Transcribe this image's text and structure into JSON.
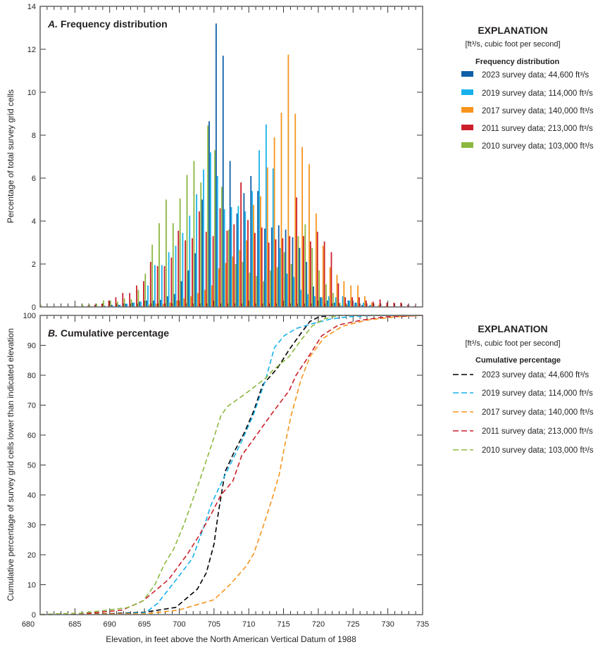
{
  "chart_data": [
    {
      "type": "bar",
      "title": "A. Frequency distribution",
      "title_letter": "A.",
      "title_text": "Frequency distribution",
      "xlabel": "",
      "ylabel": "Percentage of total survey grid cells",
      "xlim": [
        680,
        735
      ],
      "ylim": [
        0,
        14
      ],
      "yticks": [
        0,
        2,
        4,
        6,
        8,
        10,
        12,
        14
      ],
      "grid": false,
      "legend_position": "right",
      "legend": {
        "heading": "EXPLANATION",
        "units_note": "[ft³/s, cubic foot per second]",
        "group_title": "Frequency distribution"
      },
      "bin_start": 680,
      "bin_width": 1,
      "bar_order": [
        "2010",
        "2023",
        "2019",
        "2017",
        "2011"
      ],
      "series": [
        {
          "key": "2023",
          "name": "2023 survey data; 44,600 ft³/s",
          "color": "#0f5fa8",
          "values": [
            0,
            0,
            0,
            0,
            0,
            0,
            0,
            0,
            0,
            0.05,
            0.1,
            0.1,
            0.15,
            0.2,
            0.25,
            0.3,
            0.3,
            0.33,
            0.5,
            0.6,
            1.2,
            1.7,
            2.5,
            5.0,
            8.65,
            13.2,
            11.7,
            6.8,
            4.35,
            5.3,
            6.1,
            5.4,
            3.65,
            3.7,
            3.8,
            3.6,
            3.25,
            2.75,
            2.1,
            0.95,
            0.45,
            0.3,
            0.2,
            0.05,
            0.3,
            0.2,
            0.1,
            0.05,
            0,
            0,
            0,
            0,
            0,
            0
          ]
        },
        {
          "key": "2019",
          "name": "2019 survey data; 114,000 ft³/s",
          "color": "#17b1ec",
          "values": [
            0,
            0,
            0,
            0,
            0,
            0,
            0,
            0,
            0,
            0,
            0.05,
            0.1,
            0.15,
            0.2,
            0.25,
            1.0,
            1.95,
            1.95,
            2.55,
            2.85,
            3.45,
            4.25,
            5.25,
            6.4,
            7.2,
            6.1,
            4.55,
            4.65,
            4.7,
            4.45,
            5.4,
            7.3,
            8.5,
            6.45,
            2.75,
            1.55,
            1.4,
            0.8,
            0.6,
            0.5,
            0.45,
            0.5,
            0.45,
            0.5,
            0.3,
            0.2,
            0.2,
            0.1,
            0,
            0,
            0,
            0,
            0,
            0
          ]
        },
        {
          "key": "2017",
          "name": "2017 survey data; 140,000 ft³/s",
          "color": "#f7941d",
          "values": [
            0,
            0,
            0,
            0,
            0,
            0,
            0,
            0,
            0,
            0,
            0,
            0,
            0,
            0,
            0.05,
            0.1,
            0.15,
            0.15,
            0.2,
            0.3,
            0.4,
            0.5,
            0.65,
            0.8,
            1.0,
            1.8,
            2.05,
            2.35,
            2.65,
            3.1,
            4.75,
            5.15,
            6.5,
            7.9,
            9.05,
            11.75,
            9.0,
            7.45,
            6.65,
            4.35,
            2.85,
            1.85,
            1.5,
            1.2,
            1.0,
            1.0,
            0.5,
            0.2,
            0.1,
            0.05,
            0,
            0,
            0,
            0
          ]
        },
        {
          "key": "2011",
          "name": "2011 survey data; 213,000 ft³/s",
          "color": "#cc1f2a",
          "values": [
            0,
            0,
            0,
            0,
            0,
            0,
            0.05,
            0.1,
            0.15,
            0.3,
            0.45,
            0.65,
            0.65,
            1.0,
            1.2,
            2.1,
            1.9,
            1.9,
            2.3,
            3.55,
            3.1,
            3.2,
            4.45,
            3.5,
            3.3,
            4.6,
            3.55,
            3.85,
            5.8,
            4.05,
            3.45,
            3.7,
            3.0,
            3.15,
            3.2,
            3.3,
            5.1,
            3.3,
            3.05,
            3.5,
            3.05,
            2.55,
            1.1,
            0.45,
            0.45,
            0.45,
            0.3,
            0.25,
            0.35,
            0.2,
            0.2,
            0.2,
            0.1,
            0.05
          ]
        },
        {
          "key": "2010",
          "name": "2010 survey data; 103,000 ft³/s",
          "color": "#8cb83f",
          "values": [
            0.1,
            0.03,
            0.03,
            0.03,
            0.05,
            0.05,
            0.1,
            0.1,
            0.15,
            0.3,
            0.3,
            0.25,
            0.4,
            0.35,
            0.8,
            1.55,
            2.9,
            3.9,
            5.0,
            3.9,
            5.05,
            6.15,
            6.8,
            5.8,
            8.45,
            7.3,
            5.6,
            3.6,
            2.0,
            2.1,
            1.6,
            1.45,
            1.2,
            1.7,
            1.85,
            2.55,
            2.0,
            3.3,
            3.85,
            2.75,
            1.7,
            1.05,
            0.65,
            0.2,
            0.1,
            0.05,
            0,
            0,
            0,
            0,
            0,
            0,
            0,
            0
          ]
        }
      ]
    },
    {
      "type": "line",
      "title": "B. Cumulative percentage",
      "title_letter": "B.",
      "title_text": "Cumulative percentage",
      "xlabel": "Elevation, in feet above the North American Vertical Datum of 1988",
      "ylabel": "Cumulative percentage of survey grid cells lower than indicated elevation",
      "xlim": [
        680,
        735
      ],
      "ylim": [
        0,
        100
      ],
      "xticks": [
        680,
        685,
        690,
        695,
        700,
        705,
        710,
        715,
        720,
        725,
        730,
        735
      ],
      "yticks": [
        0,
        10,
        20,
        30,
        40,
        50,
        60,
        70,
        80,
        90,
        100
      ],
      "grid": false,
      "line_style": "dashed",
      "legend_position": "right",
      "legend": {
        "heading": "EXPLANATION",
        "units_note": "[ft³/s, cubic foot per second]",
        "group_title": "Cumulative percentage"
      },
      "series": [
        {
          "key": "2023",
          "name": "2023 survey data; 44,600 ft³/s",
          "color": "#000000",
          "points": [
            [
              680,
              0
            ],
            [
              690,
              0.3
            ],
            [
              695,
              0.8
            ],
            [
              699.5,
              2.4
            ],
            [
              702.6,
              8.5
            ],
            [
              703.9,
              14
            ],
            [
              705,
              23.5
            ],
            [
              705.6,
              33.6
            ],
            [
              706.6,
              47.8
            ],
            [
              708,
              54.8
            ],
            [
              709.4,
              61
            ],
            [
              710.7,
              68
            ],
            [
              712,
              76.8
            ],
            [
              714.1,
              82.3
            ],
            [
              715.8,
              88.5
            ],
            [
              717.5,
              94
            ],
            [
              718.8,
              98
            ],
            [
              720.1,
              99.5
            ],
            [
              722,
              100
            ],
            [
              735,
              100
            ]
          ]
        },
        {
          "key": "2019",
          "name": "2019 survey data; 114,000 ft³/s",
          "color": "#17b1ec",
          "points": [
            [
              680,
              0
            ],
            [
              690,
              0.1
            ],
            [
              695.2,
              0.7
            ],
            [
              696.9,
              3.8
            ],
            [
              699.6,
              11.8
            ],
            [
              701.9,
              18.8
            ],
            [
              703.6,
              29.7
            ],
            [
              704.6,
              36.8
            ],
            [
              706,
              43.8
            ],
            [
              707.3,
              50
            ],
            [
              709,
              58
            ],
            [
              710.7,
              67
            ],
            [
              712.4,
              78.4
            ],
            [
              713.7,
              89.3
            ],
            [
              715.1,
              93.2
            ],
            [
              716.8,
              95.6
            ],
            [
              719.1,
              97.2
            ],
            [
              721.8,
              98.8
            ],
            [
              724.2,
              99.5
            ],
            [
              728,
              100
            ],
            [
              735,
              100
            ]
          ]
        },
        {
          "key": "2017",
          "name": "2017 survey data; 140,000 ft³/s",
          "color": "#f7941d",
          "points": [
            [
              680,
              0
            ],
            [
              695.2,
              0.3
            ],
            [
              699.9,
              1.5
            ],
            [
              705,
              5
            ],
            [
              707.3,
              10
            ],
            [
              709.7,
              16.4
            ],
            [
              710.7,
              20.3
            ],
            [
              712,
              29
            ],
            [
              713.4,
              39
            ],
            [
              714.4,
              47
            ],
            [
              715.1,
              55.6
            ],
            [
              716.1,
              66.6
            ],
            [
              717.5,
              78.4
            ],
            [
              718.8,
              86.2
            ],
            [
              720.8,
              92.5
            ],
            [
              723.5,
              96.4
            ],
            [
              726.9,
              98.4
            ],
            [
              731,
              99.5
            ],
            [
              735,
              100
            ]
          ]
        },
        {
          "key": "2011",
          "name": "2011 survey data; 213,000 ft³/s",
          "color": "#cc1f2a",
          "points": [
            [
              680,
              0
            ],
            [
              686,
              0.2
            ],
            [
              691.8,
              1.5
            ],
            [
              694.8,
              4.6
            ],
            [
              698.5,
              11.8
            ],
            [
              701.2,
              20.3
            ],
            [
              702.9,
              26.6
            ],
            [
              704.6,
              33.6
            ],
            [
              706,
              40
            ],
            [
              707.7,
              44.6
            ],
            [
              709,
              53.2
            ],
            [
              710.5,
              58
            ],
            [
              713.4,
              67.4
            ],
            [
              715.8,
              74.8
            ],
            [
              716.8,
              80
            ],
            [
              718.8,
              87
            ],
            [
              720.5,
              93.2
            ],
            [
              722.9,
              96.8
            ],
            [
              726.2,
              98.4
            ],
            [
              729.6,
              99.5
            ],
            [
              735,
              100
            ]
          ]
        },
        {
          "key": "2010",
          "name": "2010 survey data; 103,000 ft³/s",
          "color": "#8cb83f",
          "points": [
            [
              680,
              0.1
            ],
            [
              686,
              0.5
            ],
            [
              692.5,
              2.3
            ],
            [
              694.8,
              4.6
            ],
            [
              696.5,
              10
            ],
            [
              697.9,
              17
            ],
            [
              699.2,
              21.9
            ],
            [
              700.6,
              29.7
            ],
            [
              702.9,
              44.6
            ],
            [
              704.6,
              56.4
            ],
            [
              706,
              66.6
            ],
            [
              707,
              69.7
            ],
            [
              709.4,
              73.6
            ],
            [
              712.4,
              79
            ],
            [
              713.4,
              81.5
            ],
            [
              715.8,
              86.2
            ],
            [
              717.5,
              91.7
            ],
            [
              719.1,
              96.4
            ],
            [
              720.8,
              98.8
            ],
            [
              723,
              100
            ],
            [
              735,
              100
            ]
          ]
        }
      ]
    }
  ]
}
